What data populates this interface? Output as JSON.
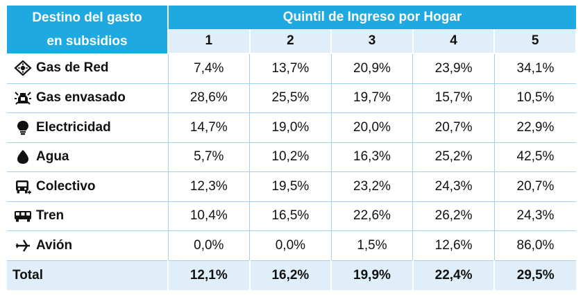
{
  "header": {
    "left_line1": "Destino del gasto",
    "left_line2": "en subsidios",
    "group_title": "Quintil de Ingreso por Hogar",
    "quintiles": [
      "1",
      "2",
      "3",
      "4",
      "5"
    ]
  },
  "rows": [
    {
      "label": "Gas de Red",
      "icon": "gas-network-icon",
      "values": [
        "7,4%",
        "13,7%",
        "20,9%",
        "23,9%",
        "34,1%"
      ]
    },
    {
      "label": "Gas envasado",
      "icon": "gas-bottle-icon",
      "values": [
        "28,6%",
        "25,5%",
        "19,7%",
        "15,7%",
        "10,5%"
      ]
    },
    {
      "label": "Electricidad",
      "icon": "lightbulb-icon",
      "values": [
        "14,7%",
        "19,0%",
        "20,0%",
        "20,7%",
        "22,9%"
      ]
    },
    {
      "label": "Agua",
      "icon": "water-drop-icon",
      "values": [
        "5,7%",
        "10,2%",
        "16,3%",
        "25,2%",
        "42,5%"
      ]
    },
    {
      "label": "Colectivo",
      "icon": "bus-icon",
      "values": [
        "12,3%",
        "19,5%",
        "23,2%",
        "24,3%",
        "20,7%"
      ]
    },
    {
      "label": "Tren",
      "icon": "train-icon",
      "values": [
        "10,4%",
        "16,5%",
        "22,6%",
        "26,2%",
        "24,3%"
      ]
    },
    {
      "label": "Avión",
      "icon": "airplane-icon",
      "values": [
        "0,0%",
        "0,0%",
        "1,5%",
        "12,6%",
        "86,0%"
      ]
    }
  ],
  "total": {
    "label": "Total",
    "values": [
      "12,1%",
      "16,2%",
      "19,9%",
      "22,4%",
      "29,5%"
    ]
  },
  "colors": {
    "header_bg": "#1fa9e1",
    "subheader_bg": "#dfeef8",
    "grid_line": "#9fd3ee"
  }
}
